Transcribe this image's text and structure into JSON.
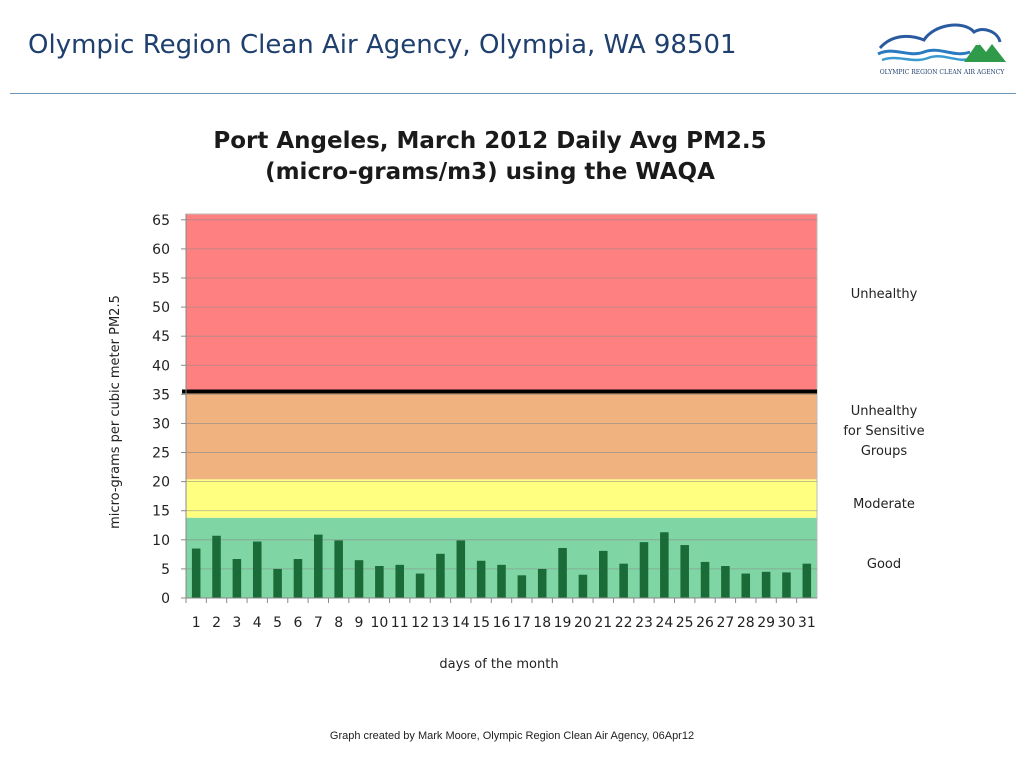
{
  "header": {
    "title": "Olympic Region Clean Air Agency, Olympia, WA 98501",
    "logo_text": "OLYMPIC REGION CLEAN AIR AGENCY"
  },
  "footer": {
    "credit": "Graph created by Mark Moore, Olympic Region Clean Air Agency, 06Apr12"
  },
  "colors": {
    "title_blue": "#1f3f6e",
    "good": "#7fd6a4",
    "moderate": "#ffff80",
    "sensitive": "#f0b27e",
    "unhealthy": "#ff8080",
    "bar": "#1a6b38",
    "threshold": "#000000"
  },
  "chart_data": {
    "type": "bar",
    "title_line1": "Port Angeles, March 2012 Daily Avg PM2.5",
    "title_line2": "(micro-grams/m3) using the WAQA",
    "xlabel": "days of the month",
    "ylabel": "micro-grams per cubic meter PM2.5",
    "ylim": [
      0,
      66
    ],
    "yticks": [
      0,
      5,
      10,
      15,
      20,
      25,
      30,
      35,
      40,
      45,
      50,
      55,
      60,
      65
    ],
    "grid": true,
    "categories": [
      "1",
      "2",
      "3",
      "4",
      "5",
      "6",
      "7",
      "8",
      "9",
      "10",
      "11",
      "12",
      "13",
      "14",
      "15",
      "16",
      "17",
      "18",
      "19",
      "20",
      "21",
      "22",
      "23",
      "24",
      "25",
      "26",
      "27",
      "28",
      "29",
      "30",
      "31"
    ],
    "values": [
      8.5,
      10.7,
      6.7,
      9.7,
      5.0,
      6.7,
      10.9,
      9.9,
      6.5,
      5.5,
      5.7,
      4.2,
      7.6,
      9.9,
      6.4,
      5.7,
      3.9,
      5.0,
      8.6,
      4.0,
      8.1,
      5.9,
      9.6,
      11.3,
      9.1,
      6.2,
      5.5,
      4.2,
      4.5,
      4.4,
      5.9
    ],
    "threshold": 35.5,
    "bands": [
      {
        "label": "Good",
        "from": 0,
        "to": 13.8,
        "color": "#7fd6a4"
      },
      {
        "label": "Moderate",
        "from": 13.8,
        "to": 20.4,
        "color": "#ffff80"
      },
      {
        "label": "Unhealthy for Sensitive Groups",
        "from": 20.4,
        "to": 35.5,
        "color": "#f0b27e"
      },
      {
        "label": "Unhealthy",
        "from": 35.5,
        "to": 66,
        "color": "#ff8080"
      }
    ]
  }
}
